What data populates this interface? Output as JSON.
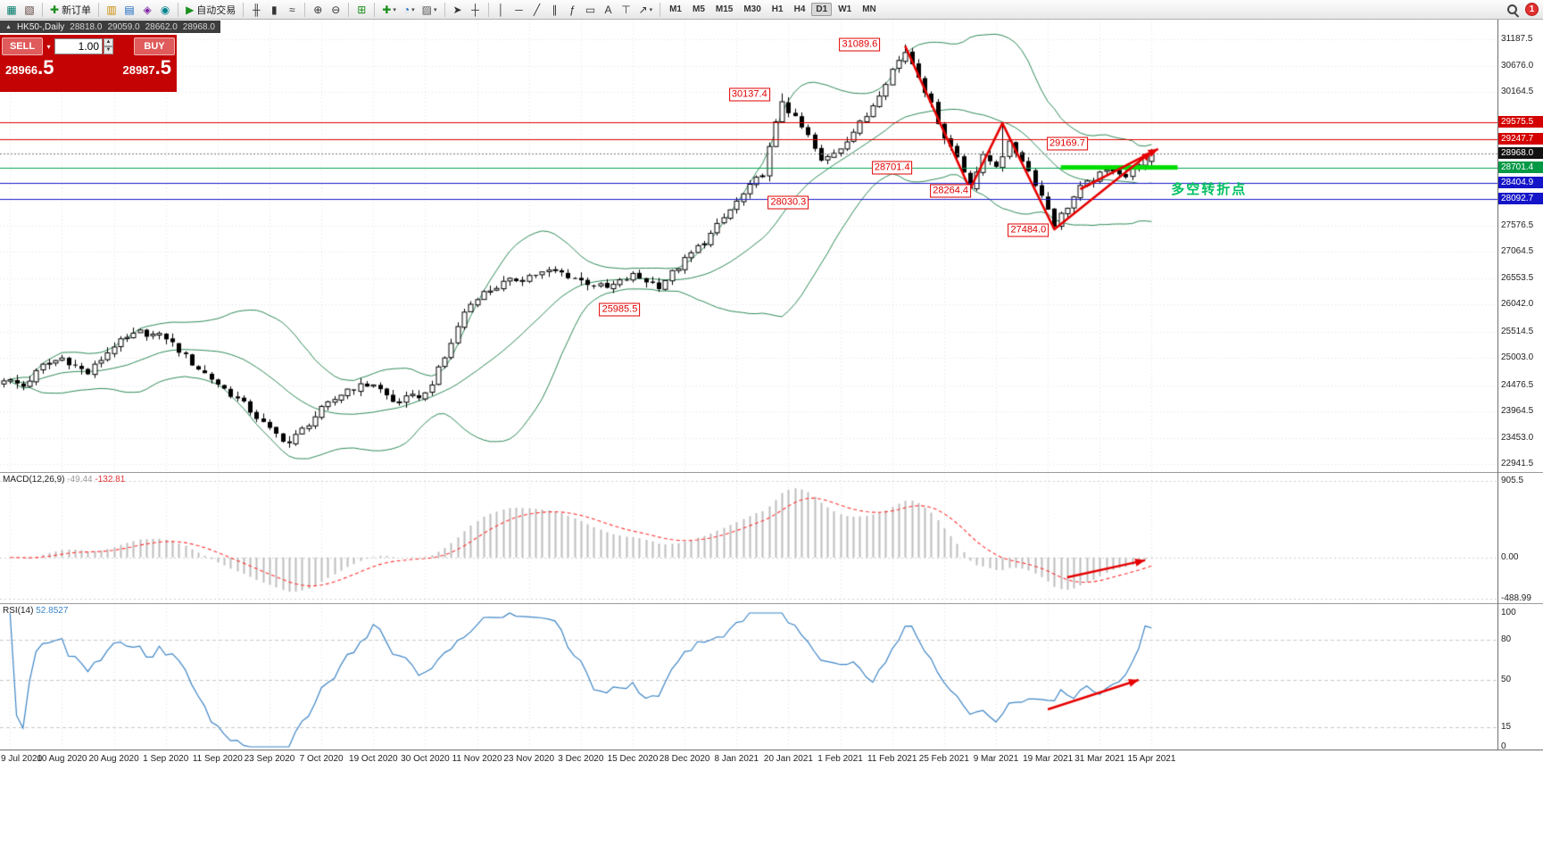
{
  "toolbar": {
    "groups": [
      {
        "items": [
          {
            "name": "charts-grid-button",
            "icon": "chart-window-icon",
            "glyph": "▦",
            "color": "#00796b"
          },
          {
            "name": "profiles-button",
            "icon": "profiles-icon",
            "glyph": "▧",
            "color": "#5d4037"
          }
        ]
      },
      {
        "items": [
          {
            "name": "new-order-button",
            "icon": "new-order-icon",
            "glyph": "✚",
            "color": "#1b8f1b",
            "label": "新订单"
          }
        ]
      },
      {
        "items": [
          {
            "name": "market-watch-button",
            "icon": "market-watch-icon",
            "glyph": "▥",
            "color": "#c98a00"
          },
          {
            "name": "data-window-button",
            "icon": "data-window-icon",
            "glyph": "▤",
            "color": "#1565c0"
          },
          {
            "name": "navigator-button",
            "icon": "navigator-icon",
            "glyph": "◈",
            "color": "#7b1fa2"
          },
          {
            "name": "terminal-button",
            "icon": "terminal-icon",
            "glyph": "◉",
            "color": "#00838f"
          }
        ]
      },
      {
        "items": [
          {
            "name": "auto-trading-button",
            "icon": "auto-trading-icon",
            "glyph": "▶",
            "color": "#1b8f1b",
            "label": "自动交易"
          }
        ]
      },
      {
        "items": [
          {
            "name": "bar-chart-button",
            "icon": "bar-chart-icon",
            "glyph": "╫",
            "color": "#333333"
          },
          {
            "name": "candlestick-chart-button",
            "icon": "candlestick-chart-icon",
            "glyph": "▮",
            "color": "#333333"
          },
          {
            "name": "line-chart-button",
            "icon": "line-chart-icon",
            "glyph": "≈",
            "color": "#333333"
          }
        ]
      },
      {
        "items": [
          {
            "name": "zoom-in-button",
            "icon": "zoom-in-icon",
            "glyph": "⊕",
            "color": "#333333"
          },
          {
            "name": "zoom-out-button",
            "icon": "zoom-out-icon",
            "glyph": "⊖",
            "color": "#333333"
          }
        ]
      },
      {
        "items": [
          {
            "name": "tile-windows-button",
            "icon": "tile-windows-icon",
            "glyph": "⊞",
            "color": "#1b8f1b"
          }
        ]
      },
      {
        "items": [
          {
            "name": "indicators-button",
            "icon": "indicators-icon",
            "glyph": "✚",
            "color": "#1b8f1b",
            "caret": true
          },
          {
            "name": "periods-button",
            "icon": "periods-icon",
            "glyph": "◔",
            "color": "#1565c0",
            "caret": true
          },
          {
            "name": "templates-button",
            "icon": "templates-icon",
            "glyph": "▨",
            "color": "#555555",
            "caret": true
          }
        ]
      },
      {
        "items": [
          {
            "name": "cursor-button",
            "icon": "cursor-icon",
            "glyph": "➤",
            "color": "#333333"
          },
          {
            "name": "crosshair-button",
            "icon": "crosshair-icon",
            "glyph": "┼",
            "color": "#333333"
          }
        ]
      },
      {
        "items": [
          {
            "name": "vertical-line-button",
            "icon": "vertical-line-icon",
            "glyph": "│",
            "color": "#333333"
          },
          {
            "name": "horizontal-line-button",
            "icon": "horizontal-line-icon",
            "glyph": "─",
            "color": "#333333"
          },
          {
            "name": "trendline-button",
            "icon": "trendline-icon",
            "glyph": "╱",
            "color": "#333333"
          },
          {
            "name": "channel-button",
            "icon": "channel-icon",
            "glyph": "∥",
            "color": "#333333"
          },
          {
            "name": "fibonacci-button",
            "icon": "fibonacci-icon",
            "glyph": "ƒ",
            "color": "#333333"
          },
          {
            "name": "shapes-button",
            "icon": "shapes-icon",
            "glyph": "▭",
            "color": "#333333"
          },
          {
            "name": "text-button",
            "icon": "text-icon",
            "glyph": "A",
            "color": "#333333"
          },
          {
            "name": "text-label-button",
            "icon": "text-label-icon",
            "glyph": "⊤",
            "color": "#333333"
          },
          {
            "name": "arrows-button",
            "icon": "arrows-icon",
            "glyph": "↗",
            "color": "#333333",
            "caret": true
          }
        ]
      }
    ],
    "timeframes": [
      "M1",
      "M5",
      "M15",
      "M30",
      "H1",
      "H4",
      "D1",
      "W1",
      "MN"
    ],
    "active_timeframe": "D1",
    "notification_count": "1"
  },
  "chart_header": {
    "symbol": "HK50-,Daily",
    "open": "28818.0",
    "high": "29059.0",
    "low": "28662.0",
    "close": "28968.0"
  },
  "trade_panel": {
    "sell_label": "SELL",
    "buy_label": "BUY",
    "sell_price": "28966.5",
    "buy_price": "28987.5",
    "volume": "1.00"
  },
  "annotations": {
    "turning_point": {
      "text": "多空转折点",
      "bar": 180,
      "price": 28290,
      "color": "#00c060"
    }
  },
  "price_callouts": [
    {
      "text": "31089.6",
      "bar": 132,
      "price": 31080
    },
    {
      "text": "30137.4",
      "bar": 115,
      "price": 30120
    },
    {
      "text": "29169.7",
      "bar": 164,
      "price": 29169.7
    },
    {
      "text": "28701.4",
      "bar": 137,
      "price": 28690
    },
    {
      "text": "28264.4",
      "bar": 146,
      "price": 28240
    },
    {
      "text": "28030.3",
      "bar": 121,
      "price": 28020
    },
    {
      "text": "27484.0",
      "bar": 158,
      "price": 27480
    },
    {
      "text": "25985.5",
      "bar": 95,
      "price": 25950
    }
  ],
  "levels": [
    {
      "price": "29575.5",
      "value": 29575.5,
      "line": "#e00000",
      "tag": "#d40000",
      "style": "solid"
    },
    {
      "price": "29247.7",
      "value": 29247.7,
      "line": "#e00000",
      "tag": "#d40000",
      "style": "solid"
    },
    {
      "price": "28968.0",
      "value": 28968.0,
      "line": "#888888",
      "tag": "#111111",
      "style": "dotted"
    },
    {
      "price": "28701.4",
      "value": 28701.4,
      "line": "#00a651",
      "tag": "#009944",
      "style": "solid"
    },
    {
      "price": "28404.9",
      "value": 28404.9,
      "line": "#1a1acc",
      "tag": "#1414c8",
      "style": "solid"
    },
    {
      "price": "28092.7",
      "value": 28092.7,
      "line": "#1a1acc",
      "tag": "#1414c8",
      "style": "solid"
    }
  ],
  "support_zone": {
    "price": 28701.4,
    "from_bar": 163,
    "to_bar": 181,
    "color": "#00dd00",
    "thickness": 5
  },
  "trend_arrows": {
    "main": [
      {
        "points": [
          [
            139,
            31060
          ],
          [
            149,
            28280
          ],
          [
            154,
            29560
          ],
          [
            162,
            27500
          ],
          [
            177,
            29010
          ]
        ]
      },
      {
        "points": [
          [
            166,
            28280
          ],
          [
            178,
            29060
          ]
        ]
      }
    ],
    "macd": [
      {
        "points": [
          [
            164,
            -234
          ],
          [
            176,
            -33
          ]
        ]
      }
    ],
    "rsi": [
      {
        "points": [
          [
            161,
            28
          ],
          [
            175,
            50
          ]
        ]
      }
    ]
  },
  "chart_data": [
    {
      "id": "main",
      "type": "candlestick",
      "symbol": "HK50",
      "timeframe": "Daily",
      "ohlc_last": {
        "open": 28818.0,
        "high": 29059.0,
        "low": 28662.0,
        "close": 28968.0
      },
      "bars_total": 178,
      "close_path": [
        [
          0,
          24600
        ],
        [
          3,
          24450
        ],
        [
          6,
          24850
        ],
        [
          9,
          25000
        ],
        [
          13,
          24700
        ],
        [
          17,
          25250
        ],
        [
          21,
          25500
        ],
        [
          25,
          25400
        ],
        [
          29,
          24900
        ],
        [
          33,
          24500
        ],
        [
          37,
          24100
        ],
        [
          41,
          23600
        ],
        [
          44,
          23350
        ],
        [
          49,
          24000
        ],
        [
          53,
          24400
        ],
        [
          57,
          24500
        ],
        [
          60,
          24150
        ],
        [
          65,
          24300
        ],
        [
          68,
          25000
        ],
        [
          71,
          25900
        ],
        [
          73,
          26200
        ],
        [
          77,
          26450
        ],
        [
          81,
          26600
        ],
        [
          85,
          26700
        ],
        [
          89,
          26500
        ],
        [
          93,
          26350
        ],
        [
          97,
          26600
        ],
        [
          101,
          26400
        ],
        [
          105,
          26900
        ],
        [
          109,
          27400
        ],
        [
          113,
          28030
        ],
        [
          117,
          28600
        ],
        [
          120,
          30000
        ],
        [
          121,
          29800
        ],
        [
          124,
          29300
        ],
        [
          126,
          28800
        ],
        [
          129,
          29100
        ],
        [
          133,
          29700
        ],
        [
          137,
          30600
        ],
        [
          139,
          30950
        ],
        [
          141,
          30500
        ],
        [
          143,
          29900
        ],
        [
          145,
          29300
        ],
        [
          147,
          28900
        ],
        [
          149,
          28350
        ],
        [
          151,
          28900
        ],
        [
          153,
          28750
        ],
        [
          155,
          29150
        ],
        [
          157,
          28850
        ],
        [
          159,
          28400
        ],
        [
          161,
          27900
        ],
        [
          162,
          27600
        ],
        [
          164,
          27950
        ],
        [
          166,
          28300
        ],
        [
          169,
          28550
        ],
        [
          171,
          28700
        ],
        [
          173,
          28520
        ],
        [
          175,
          28800
        ],
        [
          177,
          28968
        ]
      ],
      "pins": [
        [
          120,
          "high",
          30137.4
        ],
        [
          139,
          "high",
          31089.6
        ],
        [
          149,
          "low",
          28264.4
        ],
        [
          154,
          "high",
          29575.0
        ],
        [
          162,
          "low",
          27484.0
        ]
      ],
      "bollinger": {
        "period": 20,
        "deviation": 2,
        "color": "#2e8b57"
      },
      "ylim": [
        22790,
        31570
      ],
      "y_ticks": [
        31187.5,
        30676.0,
        30164.5,
        27576.5,
        27064.5,
        26553.5,
        26042.0,
        25514.5,
        25003.0,
        24476.5,
        23964.5,
        23453.0,
        22941.5
      ],
      "x_labels": [
        "9 Jul 2020",
        "10 Aug 2020",
        "20 Aug 2020",
        "1 Sep 2020",
        "11 Sep 2020",
        "23 Sep 2020",
        "7 Oct 2020",
        "19 Oct 2020",
        "30 Oct 2020",
        "11 Nov 2020",
        "23 Nov 2020",
        "3 Dec 2020",
        "15 Dec 2020",
        "28 Dec 2020",
        "8 Jan 2021",
        "20 Jan 2021",
        "1 Feb 2021",
        "11 Feb 2021",
        "25 Feb 2021",
        "9 Mar 2021",
        "19 Mar 2021",
        "31 Mar 2021",
        "15 Apr 2021"
      ],
      "bars_per_label": 8,
      "first_label_bar": 1
    },
    {
      "id": "macd",
      "type": "macd",
      "label": "MACD(12,26,9)",
      "params": [
        12,
        26,
        9
      ],
      "value_main": "-49.44",
      "value_signal": "-132.81",
      "ylim": [
        -540,
        1000
      ],
      "y_ticks": [
        "905.5",
        "0.00",
        "-488.99"
      ],
      "tick_values": [
        905.5,
        0,
        -488.99
      ],
      "histogram_color": "#bdbdbd",
      "signal_color": "#ff3333"
    },
    {
      "id": "rsi",
      "type": "line",
      "label": "RSI(14)",
      "period": 14,
      "value": "52.8527",
      "ylim": [
        0,
        100
      ],
      "y_ticks": [
        "100",
        "80",
        "50",
        "15",
        "0"
      ],
      "tick_values": [
        100,
        80,
        50,
        15,
        0
      ],
      "level_lines": [
        80,
        50,
        15
      ],
      "line_color": "#3d85c6"
    }
  ]
}
